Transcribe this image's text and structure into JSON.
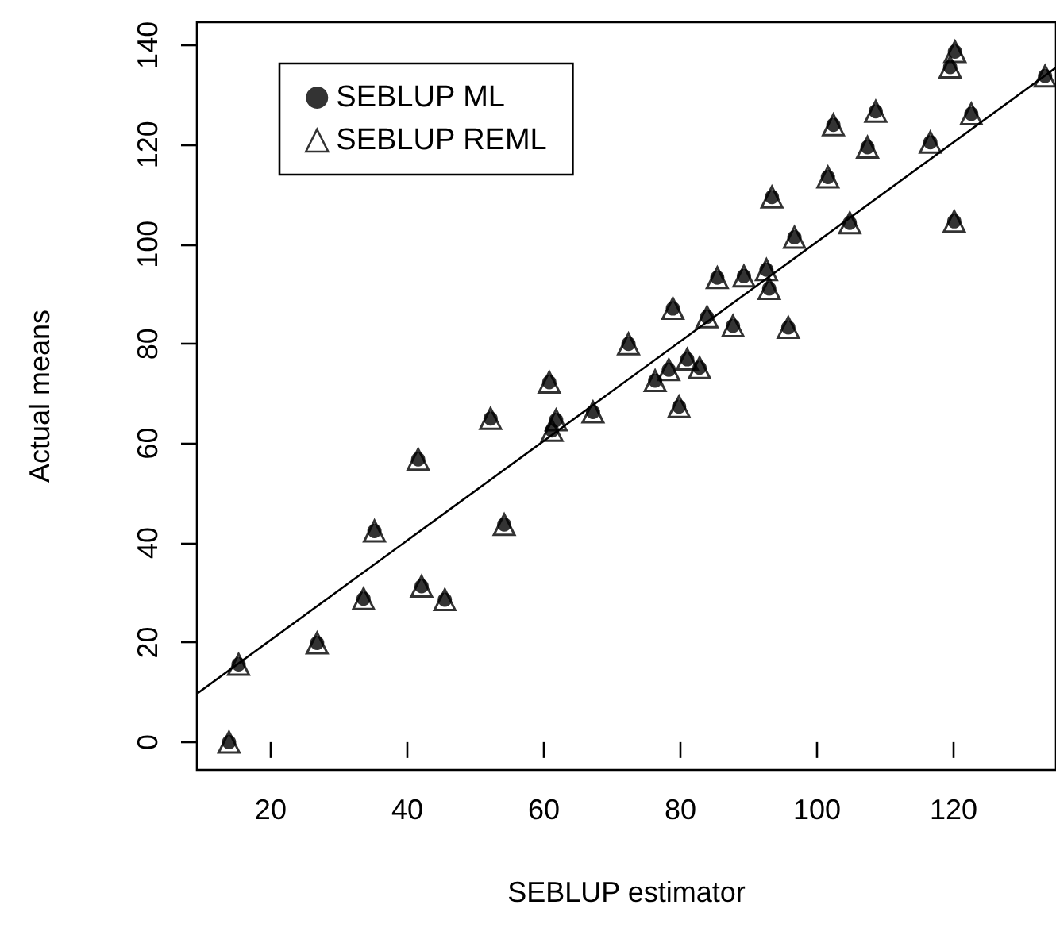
{
  "chart_data": {
    "type": "scatter",
    "xlabel": "SEBLUP estimator",
    "ylabel": "Actual means",
    "x": [
      13.9,
      15.3,
      26.8,
      33.6,
      35.2,
      42.1,
      45.5,
      41.6,
      52.2,
      54.2,
      61.2,
      61.8,
      60.8,
      67.2,
      72.4,
      76.3,
      78.3,
      79.8,
      81.0,
      82.8,
      78.9,
      83.9,
      87.7,
      95.8,
      85.4,
      89.3,
      92.6,
      93.0,
      93.4,
      96.7,
      104.8,
      120.1,
      101.6,
      102.4,
      108.6,
      107.4,
      116.6,
      122.6,
      119.5,
      120.2,
      133.4
    ],
    "series": [
      {
        "name": "SEBLUP ML",
        "color": "#000000",
        "marker": "circle",
        "values": [
          0,
          15.6,
          19.9,
          28.8,
          42.4,
          31.3,
          28.6,
          56.8,
          65.0,
          43.7,
          62.6,
          64.7,
          72.3,
          66.3,
          80.0,
          72.6,
          74.8,
          67.4,
          76.9,
          75.2,
          87.1,
          85.4,
          83.6,
          83.3,
          93.3,
          93.6,
          94.9,
          91.1,
          109.5,
          101.4,
          104.3,
          104.6,
          113.5,
          124.0,
          126.7,
          119.5,
          120.5,
          126.2,
          135.6,
          138.7,
          133.8
        ]
      },
      {
        "name": "SEBLUP REML",
        "color": "#000000",
        "marker": "triangle",
        "values": [
          0,
          15.6,
          19.9,
          28.8,
          42.4,
          31.3,
          28.6,
          56.8,
          65.0,
          43.7,
          62.6,
          64.7,
          72.3,
          66.3,
          80.0,
          72.6,
          74.8,
          67.4,
          76.9,
          75.2,
          87.1,
          85.4,
          83.6,
          83.3,
          93.3,
          93.6,
          94.9,
          91.1,
          109.5,
          101.4,
          104.3,
          104.6,
          113.5,
          124.0,
          126.7,
          119.5,
          120.5,
          126.2,
          135.6,
          138.7,
          133.8
        ]
      },
      {
        "type": "line",
        "color": "#000000",
        "x": [
          9.2,
          135
        ],
        "values": [
          9.7,
          135.5
        ]
      }
    ],
    "xlim": [
      9.2,
      135
    ],
    "ylim": [
      -5.6,
      144.6
    ],
    "xticks": [
      20,
      40,
      60,
      80,
      100,
      120
    ],
    "yticks": [
      0,
      20,
      40,
      60,
      80,
      100,
      120,
      140
    ],
    "legend": "top left",
    "grid": false
  }
}
